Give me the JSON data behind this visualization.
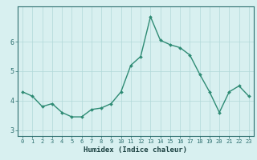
{
  "x": [
    0,
    1,
    2,
    3,
    4,
    5,
    6,
    7,
    8,
    9,
    10,
    11,
    12,
    13,
    14,
    15,
    16,
    17,
    18,
    19,
    20,
    21,
    22,
    23
  ],
  "y": [
    4.3,
    4.15,
    3.8,
    3.9,
    3.6,
    3.45,
    3.45,
    3.7,
    3.75,
    3.9,
    4.3,
    5.2,
    5.5,
    6.85,
    6.05,
    5.9,
    5.8,
    5.55,
    4.9,
    4.3,
    3.6,
    4.3,
    4.5,
    4.15
  ],
  "xlabel": "Humidex (Indice chaleur)",
  "xlim": [
    -0.5,
    23.5
  ],
  "ylim": [
    2.8,
    7.2
  ],
  "yticks": [
    3,
    4,
    5,
    6
  ],
  "xticks": [
    0,
    1,
    2,
    3,
    4,
    5,
    6,
    7,
    8,
    9,
    10,
    11,
    12,
    13,
    14,
    15,
    16,
    17,
    18,
    19,
    20,
    21,
    22,
    23
  ],
  "line_color": "#2e8b74",
  "marker_color": "#2e8b74",
  "bg_color": "#d8f0f0",
  "grid_color": "#b0d8d8",
  "axis_color": "#2e7070",
  "tick_label_color": "#2e6060",
  "xlabel_color": "#1a4040",
  "markersize": 2.0,
  "linewidth": 1.0
}
